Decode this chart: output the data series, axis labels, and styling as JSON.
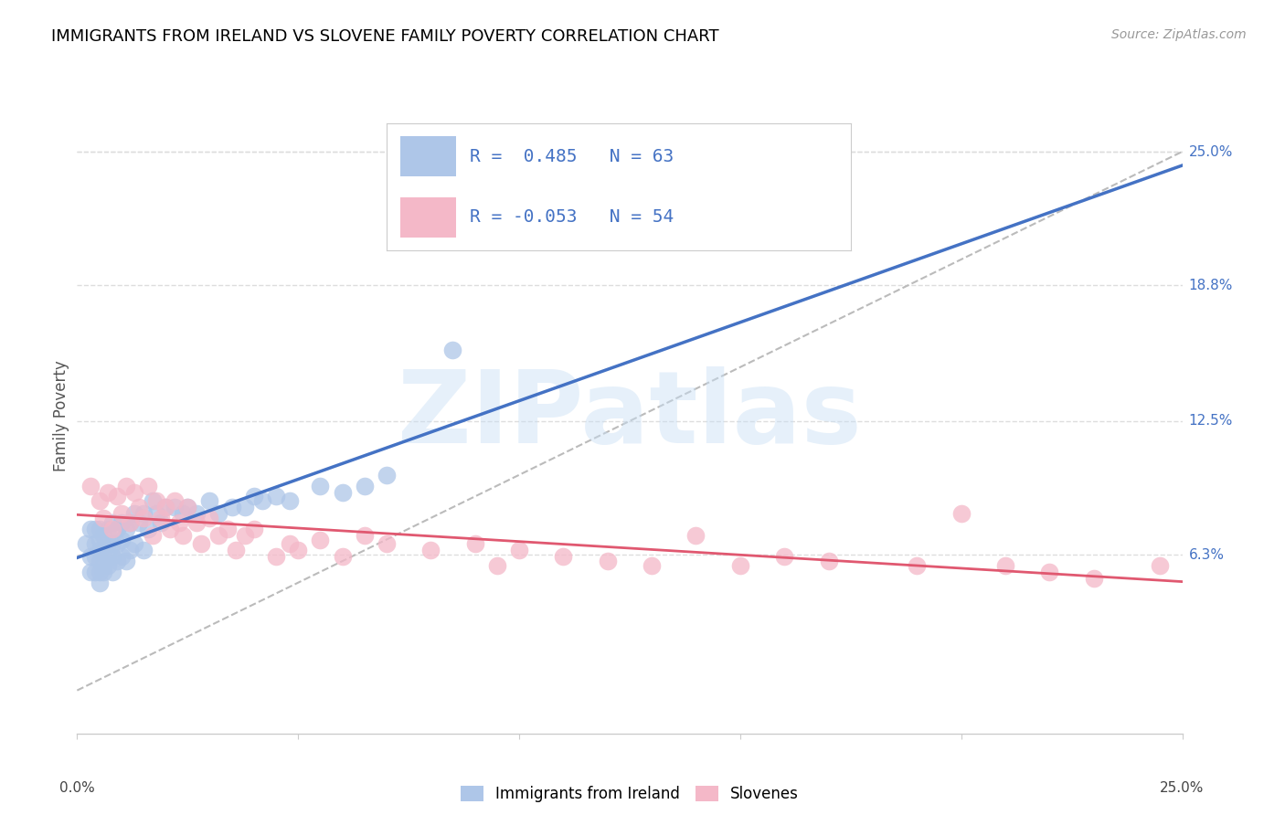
{
  "title": "IMMIGRANTS FROM IRELAND VS SLOVENE FAMILY POVERTY CORRELATION CHART",
  "source": "Source: ZipAtlas.com",
  "ylabel": "Family Poverty",
  "ytick_labels": [
    "6.3%",
    "12.5%",
    "18.8%",
    "25.0%"
  ],
  "ytick_values": [
    0.063,
    0.125,
    0.188,
    0.25
  ],
  "xlim": [
    0.0,
    0.25
  ],
  "ylim": [
    -0.02,
    0.275
  ],
  "legend_labels": [
    "Immigrants from Ireland",
    "Slovenes"
  ],
  "r_ireland": 0.485,
  "n_ireland": 63,
  "r_slovene": -0.053,
  "n_slovene": 54,
  "color_ireland": "#aec6e8",
  "color_slovene": "#f4b8c8",
  "color_blue": "#4472C4",
  "color_pink": "#E05870",
  "watermark": "ZIPatlas",
  "ireland_x": [
    0.002,
    0.003,
    0.003,
    0.003,
    0.004,
    0.004,
    0.004,
    0.004,
    0.005,
    0.005,
    0.005,
    0.005,
    0.005,
    0.005,
    0.006,
    0.006,
    0.006,
    0.006,
    0.007,
    0.007,
    0.007,
    0.007,
    0.008,
    0.008,
    0.008,
    0.008,
    0.009,
    0.009,
    0.009,
    0.01,
    0.01,
    0.01,
    0.011,
    0.011,
    0.012,
    0.012,
    0.013,
    0.013,
    0.014,
    0.015,
    0.015,
    0.016,
    0.017,
    0.018,
    0.019,
    0.02,
    0.022,
    0.024,
    0.025,
    0.027,
    0.03,
    0.032,
    0.035,
    0.038,
    0.04,
    0.042,
    0.045,
    0.048,
    0.055,
    0.06,
    0.065,
    0.07,
    0.085
  ],
  "ireland_y": [
    0.068,
    0.055,
    0.062,
    0.075,
    0.055,
    0.062,
    0.068,
    0.075,
    0.05,
    0.055,
    0.06,
    0.065,
    0.07,
    0.075,
    0.055,
    0.058,
    0.065,
    0.072,
    0.058,
    0.062,
    0.068,
    0.075,
    0.055,
    0.062,
    0.068,
    0.078,
    0.06,
    0.068,
    0.075,
    0.062,
    0.07,
    0.078,
    0.06,
    0.075,
    0.065,
    0.078,
    0.068,
    0.082,
    0.078,
    0.065,
    0.082,
    0.075,
    0.088,
    0.082,
    0.078,
    0.085,
    0.085,
    0.082,
    0.085,
    0.082,
    0.088,
    0.082,
    0.085,
    0.085,
    0.09,
    0.088,
    0.09,
    0.088,
    0.095,
    0.092,
    0.095,
    0.1,
    0.158
  ],
  "slovene_x": [
    0.003,
    0.005,
    0.006,
    0.007,
    0.008,
    0.009,
    0.01,
    0.011,
    0.012,
    0.013,
    0.014,
    0.015,
    0.016,
    0.017,
    0.018,
    0.019,
    0.02,
    0.021,
    0.022,
    0.023,
    0.024,
    0.025,
    0.027,
    0.028,
    0.03,
    0.032,
    0.034,
    0.036,
    0.038,
    0.04,
    0.045,
    0.048,
    0.05,
    0.055,
    0.06,
    0.065,
    0.07,
    0.08,
    0.09,
    0.095,
    0.1,
    0.11,
    0.12,
    0.13,
    0.14,
    0.15,
    0.16,
    0.17,
    0.19,
    0.2,
    0.21,
    0.22,
    0.23,
    0.245
  ],
  "slovene_y": [
    0.095,
    0.088,
    0.08,
    0.092,
    0.075,
    0.09,
    0.082,
    0.095,
    0.078,
    0.092,
    0.085,
    0.08,
    0.095,
    0.072,
    0.088,
    0.08,
    0.085,
    0.075,
    0.088,
    0.078,
    0.072,
    0.085,
    0.078,
    0.068,
    0.08,
    0.072,
    0.075,
    0.065,
    0.072,
    0.075,
    0.062,
    0.068,
    0.065,
    0.07,
    0.062,
    0.072,
    0.068,
    0.065,
    0.068,
    0.058,
    0.065,
    0.062,
    0.06,
    0.058,
    0.072,
    0.058,
    0.062,
    0.06,
    0.058,
    0.082,
    0.058,
    0.055,
    0.052,
    0.058
  ]
}
